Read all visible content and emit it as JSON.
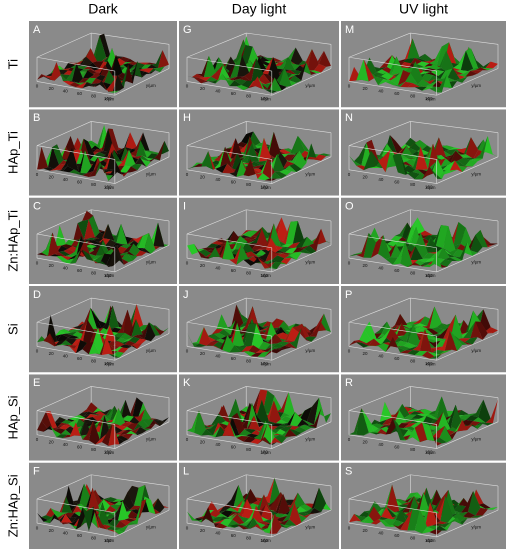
{
  "columns": [
    "Dark",
    "Day light",
    "UV light"
  ],
  "rows": [
    "Ti",
    "HAp_Ti",
    "Zn:HAp_Ti",
    "Si",
    "HAp_Si",
    "Zn:HAp_Si"
  ],
  "panels": [
    [
      "A",
      "G",
      "M"
    ],
    [
      "B",
      "H",
      "N"
    ],
    [
      "C",
      "I",
      "O"
    ],
    [
      "D",
      "J",
      "P"
    ],
    [
      "E",
      "K",
      "R"
    ],
    [
      "F",
      "L",
      "S"
    ]
  ],
  "x_ticks": [
    "0",
    "20",
    "40",
    "60",
    "80",
    "100"
  ],
  "x_axis_label": "x/µm",
  "y_axis_label": "y/µm"
}
